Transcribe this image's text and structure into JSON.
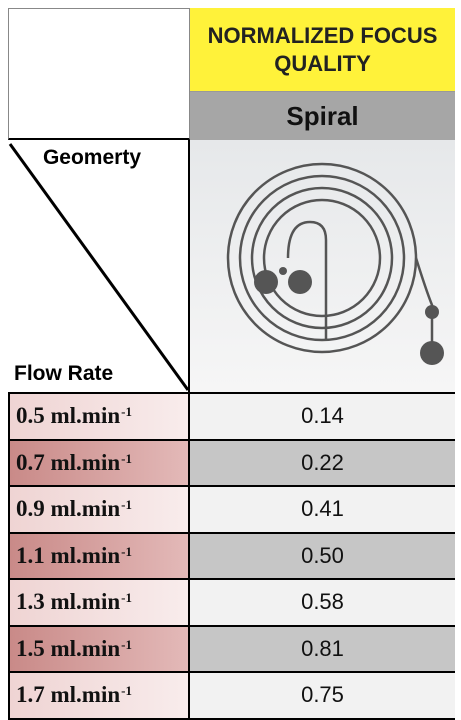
{
  "header": {
    "title": "NORMALIZED FOCUS QUALITY",
    "subtitle": "Spiral"
  },
  "corner": {
    "top": "Geomerty",
    "bottom": "Flow Rate"
  },
  "table": {
    "rows": [
      {
        "rate": "0.5 ml.min",
        "exp": "-1",
        "value": "0.14"
      },
      {
        "rate": "0.7 ml.min",
        "exp": "-1",
        "value": "0.22"
      },
      {
        "rate": "0.9 ml.min",
        "exp": "-1",
        "value": "0.41"
      },
      {
        "rate": "1.1 ml.min",
        "exp": "-1",
        "value": "0.50"
      },
      {
        "rate": "1.3 ml.min",
        "exp": "-1",
        "value": "0.58"
      },
      {
        "rate": "1.5 ml.min",
        "exp": "-1",
        "value": "0.81"
      },
      {
        "rate": "1.7 ml.min",
        "exp": "-1",
        "value": "0.75"
      }
    ]
  }
}
